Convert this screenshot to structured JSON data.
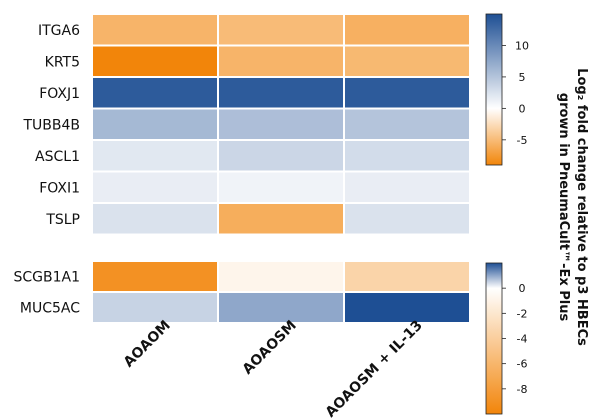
{
  "chart_data": {
    "type": "heatmap",
    "columns": [
      "AOAOM",
      "AOAOSM",
      "AOAOSM + IL-13"
    ],
    "panels": [
      {
        "rows": [
          "ITGA6",
          "KRT5",
          "FOXJ1",
          "TUBB4B",
          "ASCL1",
          "FOXI1",
          "TSLP"
        ],
        "values": [
          [
            -5.5,
            -5.0,
            -5.8
          ],
          [
            -9.0,
            -5.5,
            -5.2
          ],
          [
            14.0,
            14.0,
            14.0
          ],
          [
            6.0,
            5.5,
            5.0
          ],
          [
            2.0,
            3.5,
            3.0
          ],
          [
            1.5,
            1.0,
            1.5
          ],
          [
            2.5,
            -6.0,
            2.5
          ]
        ],
        "colorbar": {
          "range": [
            -9,
            15
          ],
          "ticks": [
            "10",
            "5",
            "0",
            "-5"
          ],
          "tick_values": [
            10,
            5,
            0,
            -5
          ]
        }
      },
      {
        "rows": [
          "SCGB1A1",
          "MUC5AC"
        ],
        "values": [
          [
            -9.0,
            -0.8,
            -3.5
          ],
          [
            0.5,
            1.0,
            2.0
          ]
        ],
        "colorbar": {
          "range": [
            -10,
            2
          ],
          "ticks": [
            "0",
            "-2",
            "-4",
            "-6",
            "-8"
          ],
          "tick_values": [
            0,
            -2,
            -4,
            -6,
            -8
          ]
        }
      }
    ],
    "colorbar_label_line1": "Log₂ fold change relative to p3 HBECs",
    "colorbar_label_line2": "grown in PneumaCult™-Ex Plus",
    "colors": {
      "negative": "#f2850a",
      "zero": "#ffffff",
      "positive": "#1e4f94"
    }
  }
}
